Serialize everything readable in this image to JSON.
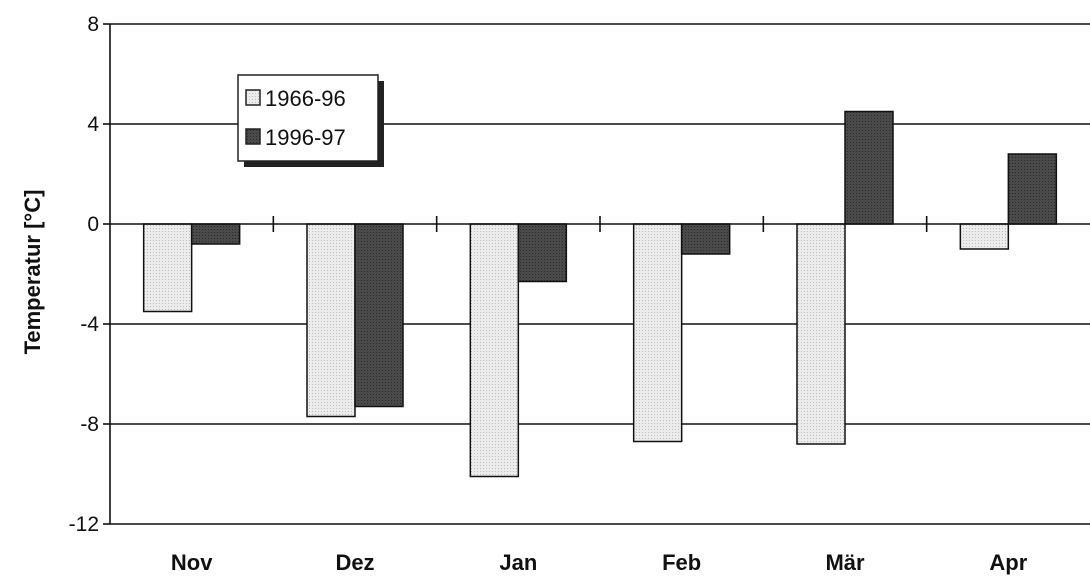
{
  "chart_data": {
    "type": "bar",
    "categories": [
      "Nov",
      "Dez",
      "Jan",
      "Feb",
      "Mär",
      "Apr"
    ],
    "series": [
      {
        "name": "1966-96",
        "values": [
          -3.5,
          -7.7,
          -10.1,
          -8.7,
          -8.8,
          -1.0
        ],
        "color": "#e6e6e6"
      },
      {
        "name": "1996-97",
        "values": [
          -0.8,
          -7.3,
          -2.3,
          -1.2,
          4.5,
          2.8
        ],
        "color": "#4a4a4a"
      }
    ],
    "ylabel": "Temperatur [°C]",
    "ylim": [
      -12,
      8
    ],
    "yticks": [
      "8",
      "4",
      "0",
      "-4",
      "-8",
      "-12"
    ],
    "grid": true,
    "legend_position": "top-left"
  }
}
